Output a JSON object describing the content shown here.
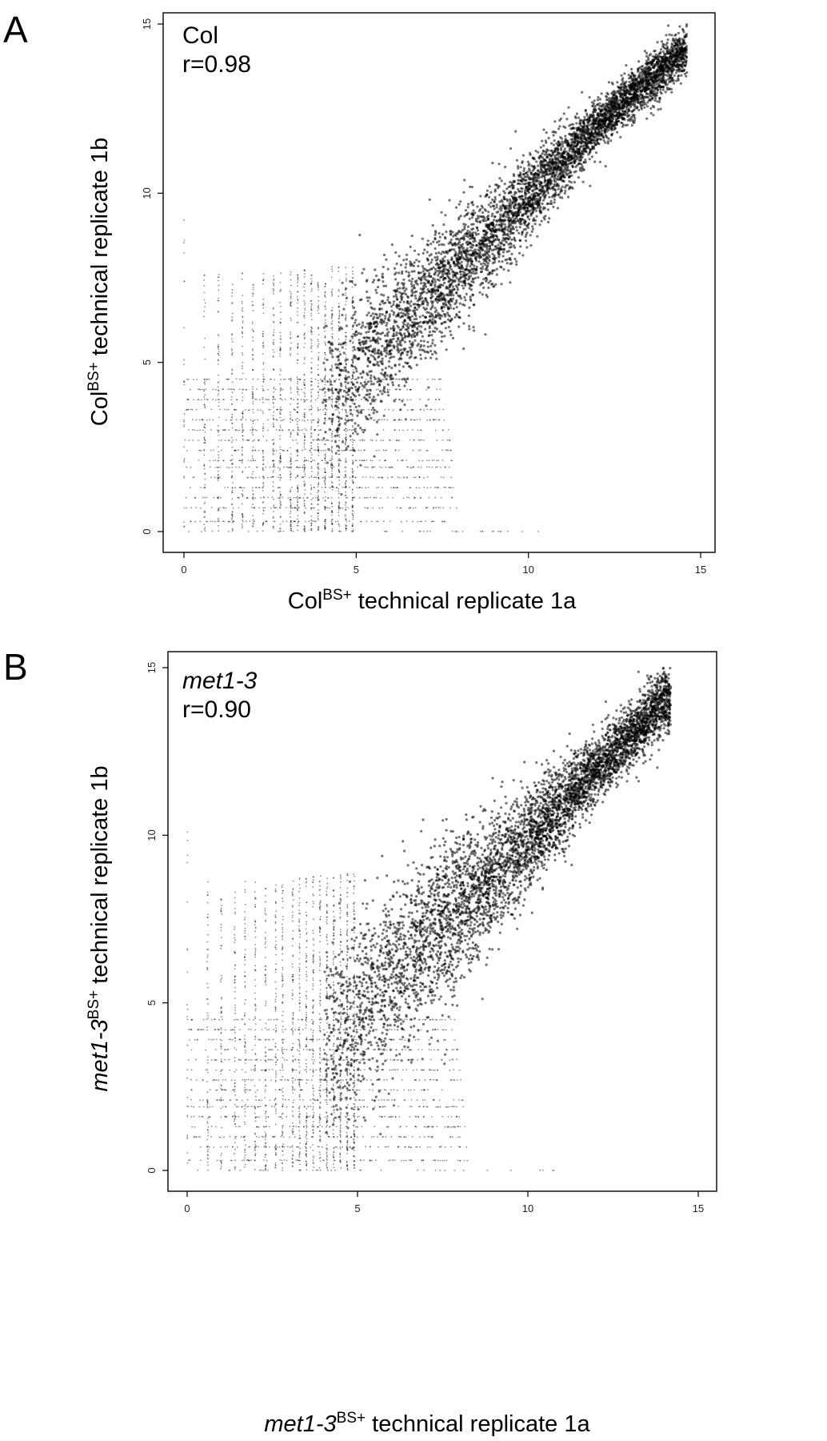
{
  "panels": [
    {
      "letter": "A",
      "annotation_name": "Col",
      "annotation_r": "r=0.98",
      "xlabel": {
        "base": "Col",
        "sup": "BS+",
        "rest": " technical replicate 1a",
        "italic_base": false
      },
      "ylabel": {
        "base": "Col",
        "sup": "BS+",
        "rest": " technical replicate 1b",
        "italic_base": false
      }
    },
    {
      "letter": "B",
      "annotation_name": "met1-3",
      "annotation_r": "r=0.90",
      "xlabel": {
        "base": "met1-3",
        "sup": "BS+",
        "rest": " technical replicate 1a",
        "italic_base": true
      },
      "ylabel": {
        "base": "met1-3",
        "sup": "BS+",
        "rest": " technical replicate 1b",
        "italic_base": true
      }
    }
  ],
  "chart_data": [
    {
      "type": "scatter",
      "title": "",
      "annotation": [
        "Col",
        "r=0.98"
      ],
      "xlabel": "ColBS+ technical replicate 1a",
      "ylabel": "ColBS+ technical replicate 1b",
      "xlim": [
        0,
        15
      ],
      "ylim": [
        0,
        15
      ],
      "xticks": [
        0,
        5,
        10,
        15
      ],
      "yticks": [
        0,
        5,
        10,
        15
      ],
      "correlation": 0.98,
      "density_trend": {
        "x": [
          0,
          2,
          4,
          6,
          8,
          10,
          12,
          14.5
        ],
        "y": [
          0.5,
          2,
          3.8,
          5.8,
          7.8,
          9.9,
          12,
          14.2
        ]
      },
      "grid": false
    },
    {
      "type": "scatter",
      "title": "",
      "annotation": [
        "met1-3",
        "r=0.90"
      ],
      "xlabel": "met1-3BS+ technical replicate 1a",
      "ylabel": "met1-3BS+ technical replicate 1b",
      "xlim": [
        0,
        15
      ],
      "ylim": [
        0,
        15
      ],
      "xticks": [
        0,
        5,
        10,
        15
      ],
      "yticks": [
        0,
        5,
        10,
        15
      ],
      "correlation": 0.9,
      "density_trend": {
        "x": [
          0,
          2,
          4,
          6,
          8,
          10,
          12,
          14
        ],
        "y": [
          0.5,
          2,
          3.8,
          5.8,
          7.8,
          9.9,
          11.9,
          14
        ]
      },
      "grid": false
    }
  ]
}
